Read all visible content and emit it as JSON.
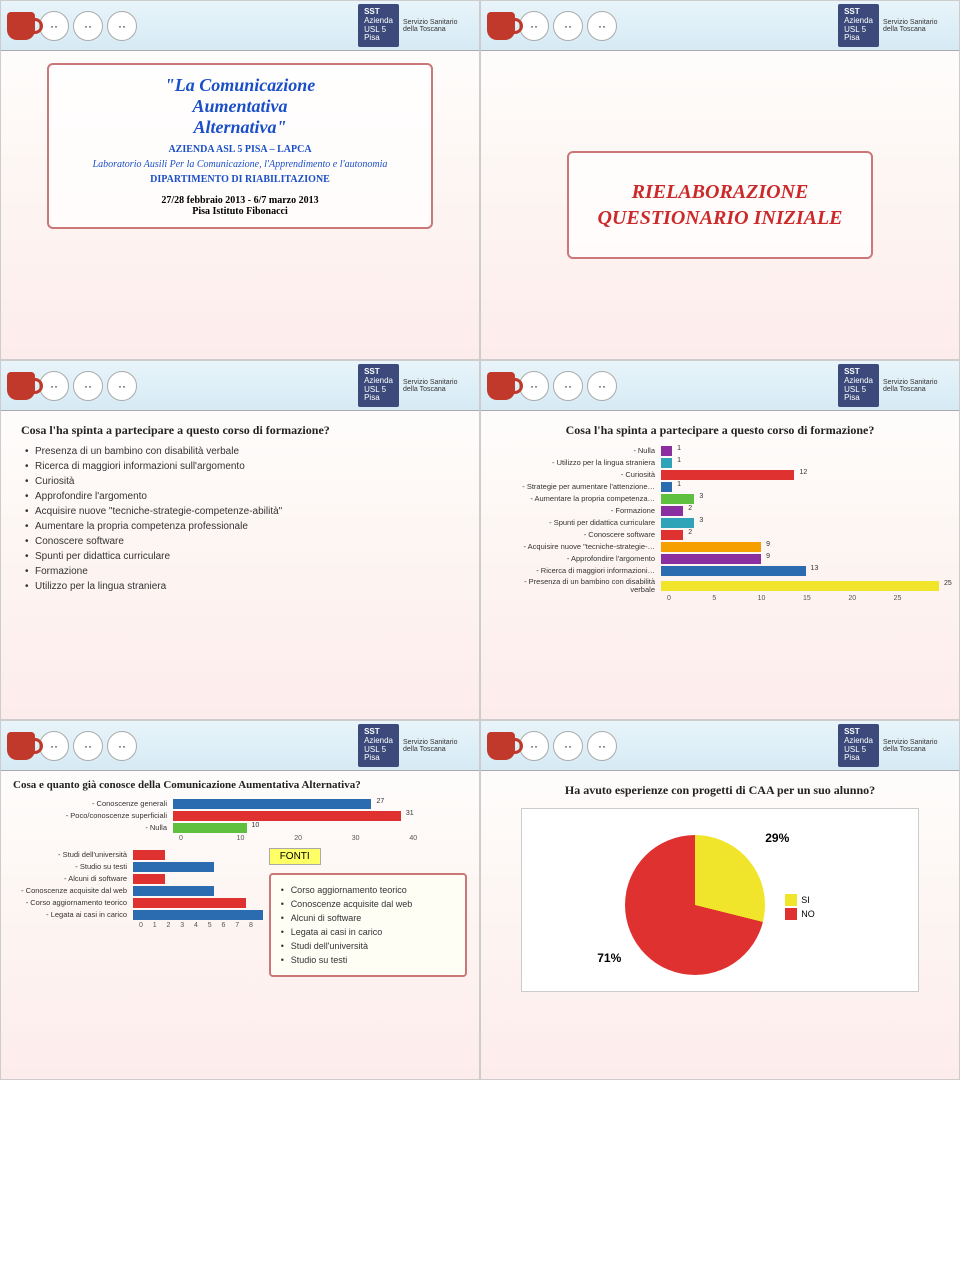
{
  "header": {
    "sst_lines": [
      "Azienda",
      "USL 5",
      "Pisa"
    ],
    "sst_sub": "Servizio Sanitario della Toscana"
  },
  "slide1": {
    "title_line1": "\"La Comunicazione",
    "title_line2": "Aumentativa",
    "title_line3": "Alternativa\"",
    "sub1": "AZIENDA ASL 5 PISA – LAPCA",
    "sub2": "Laboratorio Ausili Per la Comunicazione, l'Apprendimento e l'autonomia",
    "sub3": "DIPARTIMENTO DI RIABILITAZIONE",
    "dates": "27/28 febbraio 2013   -   6/7 marzo 2013",
    "place": "Pisa Istituto Fibonacci"
  },
  "slide2": {
    "line1": "RIELABORAZIONE",
    "line2": "QUESTIONARIO INIZIALE"
  },
  "slide3": {
    "question": "Cosa l'ha spinta a partecipare a questo corso di formazione?",
    "items": [
      "Presenza di un bambino con disabilità verbale",
      "Ricerca di maggiori informazioni sull'argomento",
      "Curiosità",
      "Approfondire l'argomento",
      "Acquisire nuove \"tecniche-strategie-competenze-abilità\"",
      "Aumentare la propria competenza professionale",
      "Conoscere software",
      "Spunti per didattica curriculare",
      "Formazione",
      "Utilizzo per la lingua straniera"
    ]
  },
  "slide4": {
    "question": "Cosa l'ha spinta a partecipare a questo corso di formazione?",
    "xmax": 25,
    "xticks": [
      0,
      5,
      10,
      15,
      20,
      25
    ],
    "bars": [
      {
        "label": "Nulla",
        "value": 1,
        "color": "#8b2fa0"
      },
      {
        "label": "Utilizzo per la lingua straniera",
        "value": 1,
        "color": "#2fa3b8"
      },
      {
        "label": "Curiosità",
        "value": 12,
        "color": "#e03131"
      },
      {
        "label": "Strategie per aumentare l'attenzione…",
        "value": 1,
        "color": "#2b6cb0"
      },
      {
        "label": "Aumentare la propria competenza…",
        "value": 3,
        "color": "#5fbf3f"
      },
      {
        "label": "Formazione",
        "value": 2,
        "color": "#8b2fa0"
      },
      {
        "label": "Spunti per didattica curriculare",
        "value": 3,
        "color": "#2fa3b8"
      },
      {
        "label": "Conoscere software",
        "value": 2,
        "color": "#e03131"
      },
      {
        "label": "Acquisire nuove \"tecniche-strategie-…",
        "value": 9,
        "color": "#f59f00"
      },
      {
        "label": "Approfondire l'argomento",
        "value": 9,
        "color": "#8b2fa0"
      },
      {
        "label": "Ricerca di maggiori informazioni…",
        "value": 13,
        "color": "#2b6cb0"
      },
      {
        "label": "Presenza di un bambino con disabilità verbale",
        "value": 25,
        "color": "#f1e52b"
      }
    ]
  },
  "slide5": {
    "question": "Cosa  e quanto già conosce della Comunicazione Aumentativa Alternativa?",
    "top_chart": {
      "xmax": 40,
      "xticks": [
        0,
        10,
        20,
        30,
        40
      ],
      "bars": [
        {
          "label": "Conoscenze generali",
          "value": 27,
          "color": "#2b6cb0"
        },
        {
          "label": "Poco/conoscenze superficiali",
          "value": 31,
          "color": "#e03131"
        },
        {
          "label": "Nulla",
          "value": 10,
          "color": "#5fbf3f"
        }
      ]
    },
    "fonti_title": "FONTI",
    "fonti_items": [
      "Corso aggiornamento teorico",
      "Conoscenze acquisite dal web",
      "Alcuni di software",
      "Legata ai casi in carico",
      "Studi dell'università",
      "Studio su testi"
    ],
    "bottom_chart": {
      "xmax": 8,
      "xticks": [
        0,
        1,
        2,
        3,
        4,
        5,
        6,
        7,
        8
      ],
      "bars": [
        {
          "label": "Studi dell'università",
          "value": 2,
          "color": "#e03131"
        },
        {
          "label": "Studio su testi",
          "value": 5,
          "color": "#2b6cb0"
        },
        {
          "label": "Alcuni di software",
          "value": 2,
          "color": "#e03131"
        },
        {
          "label": "Conoscenze acquisite dal web",
          "value": 5,
          "color": "#2b6cb0"
        },
        {
          "label": "Corso aggiornamento teorico",
          "value": 7,
          "color": "#e03131"
        },
        {
          "label": "Legata ai casi in carico",
          "value": 8,
          "color": "#2b6cb0"
        }
      ]
    }
  },
  "slide6": {
    "question": "Ha avuto esperienze con progetti di CAA per un suo alunno?",
    "si_label": "SI",
    "si_pct": "29%",
    "si_color": "#f1e52b",
    "no_label": "NO",
    "no_pct": "71%",
    "no_color": "#e03131",
    "si_deg": 104
  }
}
